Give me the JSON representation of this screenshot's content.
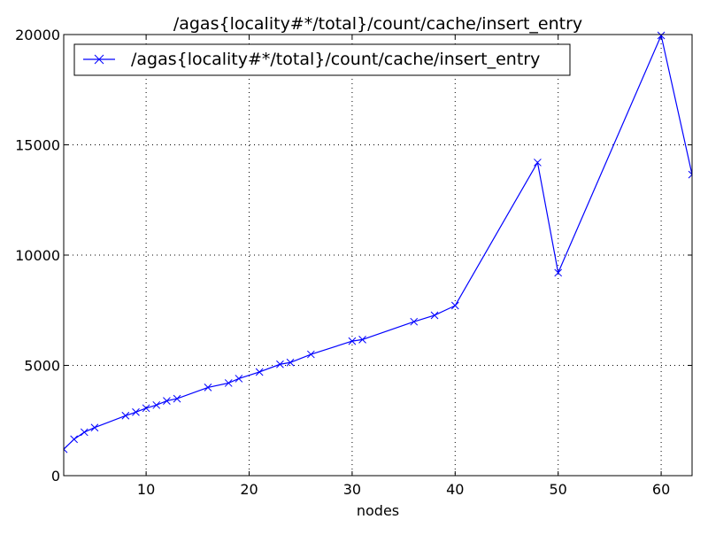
{
  "chart_data": {
    "type": "line",
    "title": "/agas{locality#*/total}/count/cache/insert_entry",
    "xlabel": "nodes",
    "ylabel": "",
    "xlim": [
      2,
      63
    ],
    "ylim": [
      0,
      20000
    ],
    "xticks": [
      10,
      20,
      30,
      40,
      50,
      60
    ],
    "yticks": [
      0,
      5000,
      10000,
      15000,
      20000
    ],
    "grid": true,
    "legend_position": "top-left",
    "series": [
      {
        "name": "/agas{locality#*/total}/count/cache/insert_entry",
        "color": "#0000ff",
        "marker": "x",
        "x": [
          2,
          3,
          4,
          5,
          8,
          9,
          10,
          11,
          12,
          13,
          16,
          18,
          19,
          21,
          23,
          24,
          26,
          30,
          31,
          36,
          38,
          40,
          48,
          50,
          60,
          63
        ],
        "y": [
          1200,
          1650,
          1970,
          2180,
          2720,
          2880,
          3060,
          3200,
          3390,
          3490,
          4000,
          4200,
          4400,
          4700,
          5050,
          5130,
          5500,
          6100,
          6170,
          6980,
          7270,
          7710,
          14200,
          9200,
          19960,
          13650
        ]
      }
    ]
  }
}
